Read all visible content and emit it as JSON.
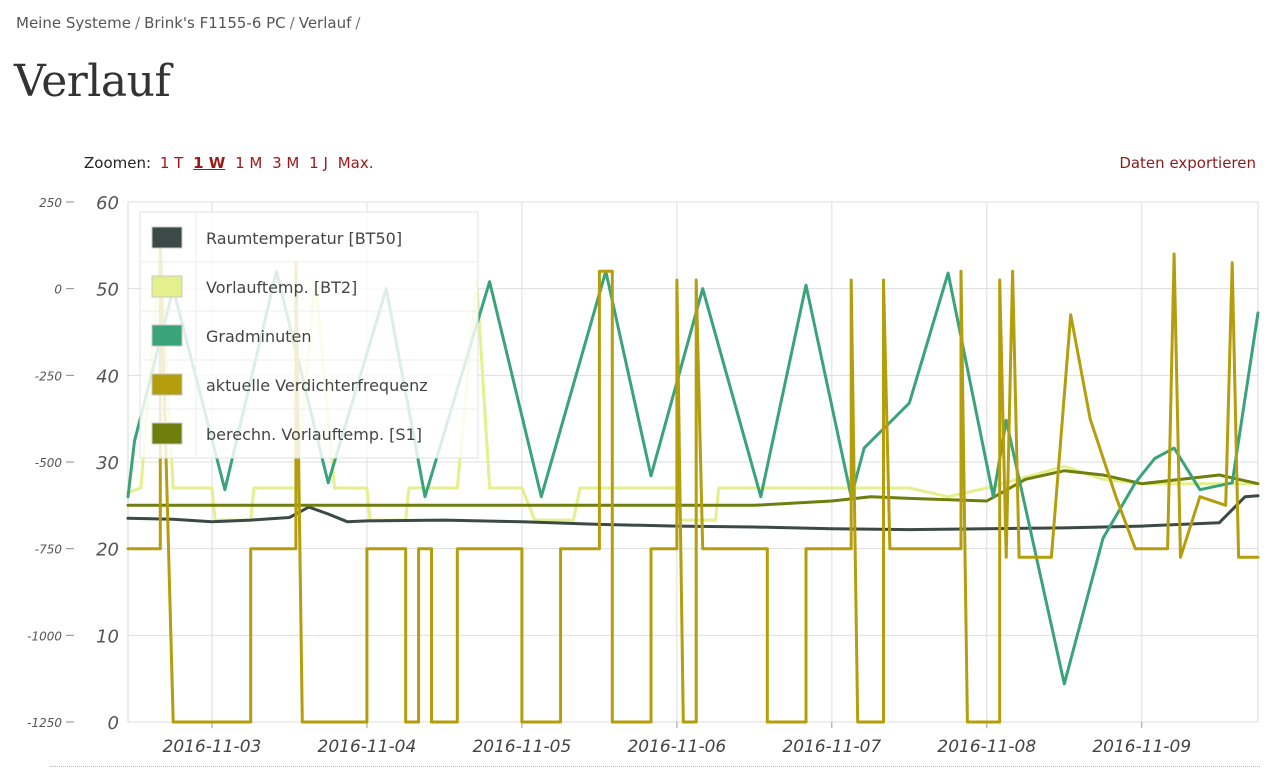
{
  "breadcrumb": {
    "items": [
      "Meine Systeme",
      "Brink's F1155-6 PC",
      "Verlauf"
    ],
    "separator": "/"
  },
  "page": {
    "title": "Verlauf"
  },
  "zoom": {
    "label": "Zoomen:",
    "options": [
      "1 T",
      "1 W",
      "1 M",
      "3 M",
      "1 J",
      "Max."
    ],
    "active": "1 W"
  },
  "export": {
    "label": "Daten exportieren"
  },
  "chart_data": {
    "type": "line",
    "grid": true,
    "legend_position": "top-left",
    "x_type": "datetime",
    "x_range": [
      "2016-11-02 11:00",
      "2016-11-09 18:00"
    ],
    "x_ticks": [
      "2016-11-03",
      "2016-11-04",
      "2016-11-05",
      "2016-11-06",
      "2016-11-07",
      "2016-11-08",
      "2016-11-09"
    ],
    "y_left": {
      "range": [
        0,
        60
      ],
      "ticks": [
        0,
        10,
        20,
        30,
        40,
        50,
        60
      ]
    },
    "y_right": {
      "range": [
        -1250,
        250
      ],
      "ticks": [
        -1250,
        -1000,
        -750,
        -500,
        -250,
        0,
        250
      ]
    },
    "series": [
      {
        "name": "Raumtemperatur [BT50]",
        "color": "#3b4a47",
        "axis": "left",
        "points": [
          [
            "2016-11-02 11:00",
            23.5
          ],
          [
            "2016-11-02 18:00",
            23.4
          ],
          [
            "2016-11-03 00:00",
            23.1
          ],
          [
            "2016-11-03 06:00",
            23.3
          ],
          [
            "2016-11-03 12:00",
            23.6
          ],
          [
            "2016-11-03 15:00",
            24.8
          ],
          [
            "2016-11-03 18:00",
            24.0
          ],
          [
            "2016-11-03 21:00",
            23.1
          ],
          [
            "2016-11-04 00:00",
            23.2
          ],
          [
            "2016-11-04 12:00",
            23.3
          ],
          [
            "2016-11-05 00:00",
            23.1
          ],
          [
            "2016-11-05 12:00",
            22.8
          ],
          [
            "2016-11-06 00:00",
            22.6
          ],
          [
            "2016-11-06 12:00",
            22.5
          ],
          [
            "2016-11-07 00:00",
            22.3
          ],
          [
            "2016-11-07 12:00",
            22.2
          ],
          [
            "2016-11-08 00:00",
            22.3
          ],
          [
            "2016-11-08 12:00",
            22.4
          ],
          [
            "2016-11-09 00:00",
            22.6
          ],
          [
            "2016-11-09 12:00",
            23.0
          ],
          [
            "2016-11-09 16:00",
            26.0
          ],
          [
            "2016-11-09 18:00",
            26.1
          ]
        ]
      },
      {
        "name": "Vorlauftemp. [BT2]",
        "color": "#e4f08c",
        "axis": "left",
        "points": [
          [
            "2016-11-02 11:00",
            26.5
          ],
          [
            "2016-11-02 13:00",
            27.0
          ],
          [
            "2016-11-02 16:00",
            55.0
          ],
          [
            "2016-11-02 18:00",
            27.0
          ],
          [
            "2016-11-03 00:00",
            27.0
          ],
          [
            "2016-11-03 00:30",
            23.3
          ],
          [
            "2016-11-03 06:00",
            23.3
          ],
          [
            "2016-11-03 06:30",
            27.0
          ],
          [
            "2016-11-03 13:00",
            27.0
          ],
          [
            "2016-11-03 16:00",
            51.0
          ],
          [
            "2016-11-03 19:00",
            27.0
          ],
          [
            "2016-11-04 00:00",
            27.0
          ],
          [
            "2016-11-04 00:30",
            23.3
          ],
          [
            "2016-11-04 06:00",
            23.3
          ],
          [
            "2016-11-04 06:30",
            27.0
          ],
          [
            "2016-11-04 14:00",
            27.0
          ],
          [
            "2016-11-04 17:00",
            51.0
          ],
          [
            "2016-11-04 19:00",
            27.0
          ],
          [
            "2016-11-05 00:00",
            27.0
          ],
          [
            "2016-11-05 02:00",
            23.3
          ],
          [
            "2016-11-05 08:00",
            23.3
          ],
          [
            "2016-11-05 09:00",
            27.0
          ],
          [
            "2016-11-06 00:00",
            27.0
          ],
          [
            "2016-11-06 00:30",
            23.3
          ],
          [
            "2016-11-06 06:00",
            23.3
          ],
          [
            "2016-11-06 06:30",
            27.0
          ],
          [
            "2016-11-07 00:00",
            27.0
          ],
          [
            "2016-11-07 12:00",
            27.0
          ],
          [
            "2016-11-07 18:00",
            26.0
          ],
          [
            "2016-11-08 00:00",
            27.0
          ],
          [
            "2016-11-08 12:00",
            29.5
          ],
          [
            "2016-11-08 18:00",
            28.0
          ],
          [
            "2016-11-09 00:00",
            27.5
          ],
          [
            "2016-11-09 12:00",
            27.5
          ],
          [
            "2016-11-09 18:00",
            27.5
          ]
        ]
      },
      {
        "name": "Gradminuten",
        "color": "#3aa37a",
        "axis": "right",
        "points": [
          [
            "2016-11-02 11:00",
            -600
          ],
          [
            "2016-11-02 12:00",
            -440
          ],
          [
            "2016-11-02 18:00",
            0
          ],
          [
            "2016-11-03 02:00",
            -580
          ],
          [
            "2016-11-03 10:00",
            50
          ],
          [
            "2016-11-03 18:00",
            -560
          ],
          [
            "2016-11-04 03:00",
            0
          ],
          [
            "2016-11-04 09:00",
            -600
          ],
          [
            "2016-11-04 19:00",
            20
          ],
          [
            "2016-11-05 03:00",
            -600
          ],
          [
            "2016-11-05 13:00",
            50
          ],
          [
            "2016-11-05 20:00",
            -540
          ],
          [
            "2016-11-06 04:00",
            0
          ],
          [
            "2016-11-06 13:00",
            -600
          ],
          [
            "2016-11-06 20:00",
            10
          ],
          [
            "2016-11-07 03:00",
            -600
          ],
          [
            "2016-11-07 05:00",
            -460
          ],
          [
            "2016-11-07 12:00",
            -330
          ],
          [
            "2016-11-07 18:00",
            45
          ],
          [
            "2016-11-08 01:00",
            -600
          ],
          [
            "2016-11-08 03:00",
            -380
          ],
          [
            "2016-11-08 12:00",
            -1140
          ],
          [
            "2016-11-08 18:00",
            -720
          ],
          [
            "2016-11-08 23:00",
            -560
          ],
          [
            "2016-11-09 02:00",
            -490
          ],
          [
            "2016-11-09 05:00",
            -460
          ],
          [
            "2016-11-09 09:00",
            -580
          ],
          [
            "2016-11-09 14:00",
            -560
          ],
          [
            "2016-11-09 18:00",
            -70
          ]
        ]
      },
      {
        "name": "aktuelle Verdichterfrequenz",
        "color": "#b59e0d",
        "axis": "left",
        "points": [
          [
            "2016-11-02 11:00",
            20
          ],
          [
            "2016-11-02 16:00",
            20
          ],
          [
            "2016-11-02 16:00",
            55
          ],
          [
            "2016-11-02 18:00",
            0
          ],
          [
            "2016-11-03 06:00",
            0
          ],
          [
            "2016-11-03 06:00",
            20
          ],
          [
            "2016-11-03 13:00",
            20
          ],
          [
            "2016-11-03 13:00",
            53
          ],
          [
            "2016-11-03 14:00",
            0
          ],
          [
            "2016-11-04 00:00",
            0
          ],
          [
            "2016-11-04 00:00",
            20
          ],
          [
            "2016-11-04 06:00",
            20
          ],
          [
            "2016-11-04 06:00",
            0
          ],
          [
            "2016-11-04 08:00",
            0
          ],
          [
            "2016-11-04 08:00",
            20
          ],
          [
            "2016-11-04 10:00",
            20
          ],
          [
            "2016-11-04 10:00",
            0
          ],
          [
            "2016-11-04 14:00",
            0
          ],
          [
            "2016-11-04 14:00",
            20
          ],
          [
            "2016-11-05 00:00",
            20
          ],
          [
            "2016-11-05 00:00",
            0
          ],
          [
            "2016-11-05 06:00",
            0
          ],
          [
            "2016-11-05 06:00",
            20
          ],
          [
            "2016-11-05 12:00",
            20
          ],
          [
            "2016-11-05 12:00",
            52
          ],
          [
            "2016-11-05 14:00",
            52
          ],
          [
            "2016-11-05 14:00",
            0
          ],
          [
            "2016-11-05 20:00",
            0
          ],
          [
            "2016-11-05 20:00",
            20
          ],
          [
            "2016-11-06 00:00",
            20
          ],
          [
            "2016-11-06 00:00",
            51
          ],
          [
            "2016-11-06 01:00",
            0
          ],
          [
            "2016-11-06 03:00",
            0
          ],
          [
            "2016-11-06 03:00",
            51
          ],
          [
            "2016-11-06 04:00",
            20
          ],
          [
            "2016-11-06 14:00",
            20
          ],
          [
            "2016-11-06 14:00",
            0
          ],
          [
            "2016-11-06 20:00",
            0
          ],
          [
            "2016-11-06 20:00",
            20
          ],
          [
            "2016-11-07 03:00",
            20
          ],
          [
            "2016-11-07 03:00",
            51
          ],
          [
            "2016-11-07 04:00",
            0
          ],
          [
            "2016-11-07 08:00",
            0
          ],
          [
            "2016-11-07 08:00",
            51
          ],
          [
            "2016-11-07 09:00",
            20
          ],
          [
            "2016-11-07 20:00",
            20
          ],
          [
            "2016-11-07 20:00",
            52
          ],
          [
            "2016-11-07 21:00",
            0
          ],
          [
            "2016-11-08 02:00",
            0
          ],
          [
            "2016-11-08 02:00",
            51
          ],
          [
            "2016-11-08 03:00",
            19
          ],
          [
            "2016-11-08 04:00",
            52
          ],
          [
            "2016-11-08 05:00",
            19
          ],
          [
            "2016-11-08 10:00",
            19
          ],
          [
            "2016-11-08 13:00",
            47
          ],
          [
            "2016-11-08 16:00",
            35
          ],
          [
            "2016-11-08 20:00",
            26
          ],
          [
            "2016-11-08 23:00",
            20
          ],
          [
            "2016-11-09 04:00",
            20
          ],
          [
            "2016-11-09 05:00",
            54
          ],
          [
            "2016-11-09 06:00",
            19
          ],
          [
            "2016-11-09 09:00",
            26
          ],
          [
            "2016-11-09 13:00",
            25
          ],
          [
            "2016-11-09 14:00",
            53
          ],
          [
            "2016-11-09 15:00",
            19
          ],
          [
            "2016-11-09 18:00",
            19
          ]
        ]
      },
      {
        "name": "berechn. Vorlauftemp. [S1]",
        "color": "#6f7f0e",
        "axis": "left",
        "points": [
          [
            "2016-11-02 11:00",
            25.0
          ],
          [
            "2016-11-06 12:00",
            25.0
          ],
          [
            "2016-11-07 00:00",
            25.5
          ],
          [
            "2016-11-07 06:00",
            26.0
          ],
          [
            "2016-11-07 12:00",
            25.8
          ],
          [
            "2016-11-08 00:00",
            25.5
          ],
          [
            "2016-11-08 06:00",
            28.0
          ],
          [
            "2016-11-08 12:00",
            29.0
          ],
          [
            "2016-11-08 18:00",
            28.5
          ],
          [
            "2016-11-09 00:00",
            27.5
          ],
          [
            "2016-11-09 12:00",
            28.5
          ],
          [
            "2016-11-09 18:00",
            27.5
          ]
        ]
      }
    ]
  }
}
